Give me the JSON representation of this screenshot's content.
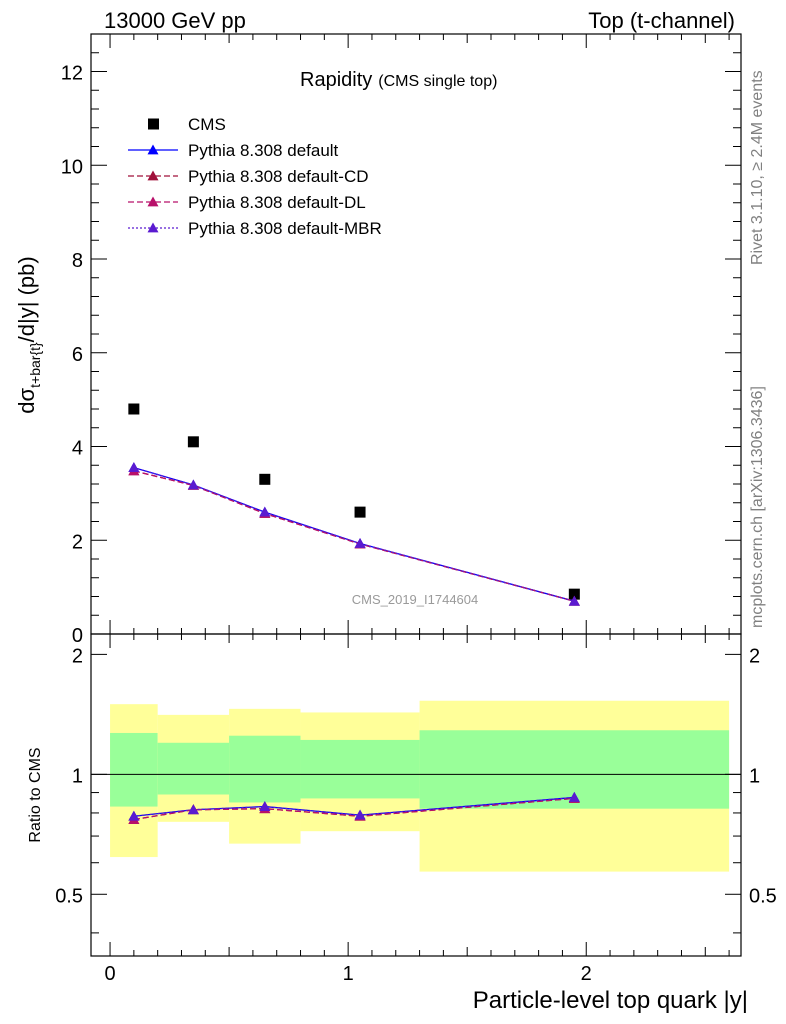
{
  "header": {
    "left": "13000 GeV pp",
    "right": "Top (t-channel)"
  },
  "side_notes": {
    "rivet": "Rivet 3.1.10, ≥ 2.4M events",
    "mcplots": "mcplots.cern.ch [arXiv:1306.3436]"
  },
  "plot": {
    "title": "Rapidity",
    "subtitle": "(CMS single top)",
    "watermark": "CMS_2019_I1744604",
    "ylabel_main": "dσ",
    "ylabel_sub": "t+bar{t}",
    "ylabel_rest": "/d|y|  (pb)",
    "ratio_ylabel": "Ratio to CMS",
    "xlabel": "Particle-level top quark |y|"
  },
  "legend": [
    {
      "name": "CMS",
      "color": "#000000",
      "marker": "square",
      "line": "none"
    },
    {
      "name": "Pythia 8.308 default",
      "color": "#0000ff",
      "marker": "triangle",
      "line": "solid"
    },
    {
      "name": "Pythia 8.308 default-CD",
      "color": "#a0103a",
      "marker": "triangle",
      "line": "dashed"
    },
    {
      "name": "Pythia 8.308 default-DL",
      "color": "#b8106a",
      "marker": "triangle",
      "line": "dashed"
    },
    {
      "name": "Pythia 8.308 default-MBR",
      "color": "#5a1ad0",
      "marker": "triangle",
      "line": "dotted"
    }
  ],
  "chart_data": [
    {
      "type": "scatter",
      "title": "Rapidity (CMS single top)",
      "xlabel": "Particle-level top quark |y|",
      "ylabel": "dσ_{t+bar{t}}/d|y|  (pb)",
      "xlim": [
        -0.08,
        2.65
      ],
      "ylim": [
        0,
        12.8
      ],
      "yticks": [
        0,
        2,
        4,
        6,
        8,
        10,
        12
      ],
      "bin_edges": [
        0,
        0.2,
        0.5,
        0.8,
        1.3,
        2.6
      ],
      "x": [
        0.1,
        0.35,
        0.65,
        1.05,
        1.95
      ],
      "series": [
        {
          "name": "CMS",
          "values": [
            4.8,
            4.1,
            3.3,
            2.6,
            0.85
          ]
        },
        {
          "name": "Pythia 8.308 default",
          "values": [
            3.55,
            3.18,
            2.6,
            1.93,
            0.7
          ]
        },
        {
          "name": "Pythia 8.308 default-CD",
          "values": [
            3.48,
            3.17,
            2.57,
            1.92,
            0.7
          ]
        },
        {
          "name": "Pythia 8.308 default-DL",
          "values": [
            3.48,
            3.17,
            2.57,
            1.92,
            0.7
          ]
        },
        {
          "name": "Pythia 8.308 default-MBR",
          "values": [
            3.55,
            3.18,
            2.6,
            1.93,
            0.7
          ]
        }
      ]
    },
    {
      "type": "line",
      "ylabel": "Ratio to CMS",
      "xlim": [
        -0.08,
        2.65
      ],
      "ylim": [
        0.35,
        2.25
      ],
      "yticks": [
        0.5,
        1,
        2
      ],
      "reference_line": 1,
      "bin_edges": [
        0,
        0.2,
        0.5,
        0.8,
        1.3,
        2.6
      ],
      "band_yellow": {
        "lo": [
          0.62,
          0.76,
          0.67,
          0.72,
          0.57
        ],
        "hi": [
          1.5,
          1.41,
          1.46,
          1.43,
          1.53
        ]
      },
      "band_green": {
        "lo": [
          0.83,
          0.89,
          0.85,
          0.87,
          0.82
        ],
        "hi": [
          1.27,
          1.2,
          1.25,
          1.22,
          1.29
        ]
      },
      "x": [
        0.1,
        0.35,
        0.65,
        1.05,
        1.95
      ],
      "series": [
        {
          "name": "Pythia 8.308 default",
          "values": [
            0.785,
            0.815,
            0.83,
            0.79,
            0.875
          ]
        },
        {
          "name": "Pythia 8.308 default-CD",
          "values": [
            0.77,
            0.815,
            0.82,
            0.785,
            0.87
          ]
        },
        {
          "name": "Pythia 8.308 default-DL",
          "values": [
            0.77,
            0.815,
            0.82,
            0.785,
            0.87
          ]
        },
        {
          "name": "Pythia 8.308 default-MBR",
          "values": [
            0.785,
            0.815,
            0.83,
            0.79,
            0.875
          ]
        }
      ]
    }
  ]
}
